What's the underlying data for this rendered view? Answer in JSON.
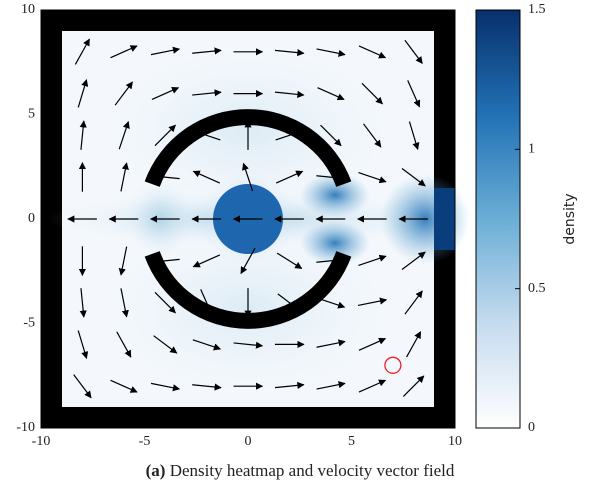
{
  "chart_data": {
    "type": "vector_field",
    "label": "(a)",
    "caption": "Density heatmap and velocity vector field",
    "xlim": [
      -10,
      10
    ],
    "ylim": [
      -10,
      10
    ],
    "xticks": [
      -10,
      -5,
      0,
      5,
      10
    ],
    "yticks": [
      -10,
      -5,
      0,
      5,
      10
    ],
    "colorbar_label": "density",
    "clim": [
      0,
      1.5
    ],
    "cticks": [
      0,
      0.5,
      1,
      1.5
    ],
    "colormap": [
      "#ffffff",
      "#c6dbef",
      "#6baed6",
      "#2171b5",
      "#08306b"
    ],
    "vector_x": [
      -8,
      -6,
      -4,
      -2,
      0,
      2,
      4,
      6,
      8
    ],
    "vector_y": [
      8,
      6,
      4,
      2,
      0,
      -2,
      -4,
      -6,
      -8
    ],
    "u": [
      [
        0.5,
        0.9,
        1,
        1,
        1,
        1,
        1,
        0.9,
        0.6
      ],
      [
        0.3,
        0.6,
        0.9,
        1,
        1,
        1,
        0.9,
        0.7,
        0.4
      ],
      [
        0.1,
        0.3,
        0.7,
        -0.9,
        0,
        0.9,
        0.7,
        0.6,
        0.3
      ],
      [
        0,
        0.2,
        -1,
        -0.9,
        -0.3,
        0.9,
        1,
        0.9,
        0.8
      ],
      [
        -1,
        -1,
        -1,
        -1,
        -1,
        -1,
        -1,
        -1,
        -1
      ],
      [
        0,
        -0.2,
        -1,
        -0.9,
        -0.5,
        0.8,
        1,
        0.9,
        0.8
      ],
      [
        0.1,
        0.2,
        0.7,
        0.4,
        0,
        0.8,
        0.9,
        1,
        0.6
      ],
      [
        0.3,
        0.5,
        0.8,
        0.9,
        1,
        1,
        1,
        0.9,
        0.5
      ],
      [
        0.6,
        0.9,
        1,
        1,
        1,
        1,
        1,
        0.9,
        0.7
      ]
    ],
    "v": [
      [
        0.9,
        0.4,
        0.2,
        0.1,
        0,
        -0.1,
        -0.2,
        -0.4,
        -0.8
      ],
      [
        1,
        0.8,
        0.4,
        0.1,
        0,
        -0.1,
        -0.4,
        -0.7,
        -0.9
      ],
      [
        1,
        0.9,
        0.7,
        0.3,
        1,
        0.3,
        -0.7,
        -0.8,
        -1
      ],
      [
        1,
        1,
        0.1,
        0.4,
        0.9,
        0.4,
        -0.1,
        -0.3,
        -0.6
      ],
      [
        0,
        0,
        0,
        0,
        0,
        0,
        0,
        0,
        0
      ],
      [
        -1,
        -1,
        -0.1,
        -0.4,
        -0.9,
        -0.5,
        0.1,
        0.3,
        0.6
      ],
      [
        -1,
        -1,
        -0.7,
        -0.9,
        -1,
        -0.6,
        -0.3,
        0.2,
        0.8
      ],
      [
        -1,
        -0.9,
        -0.6,
        -0.3,
        -0.1,
        0,
        0.2,
        0.4,
        0.9
      ],
      [
        -0.8,
        -0.4,
        -0.2,
        -0.1,
        0,
        0.1,
        0.2,
        0.4,
        0.7
      ]
    ],
    "vector_color": "#000000",
    "marker": {
      "x": 7,
      "y": -7,
      "color": "#e8202a"
    }
  }
}
